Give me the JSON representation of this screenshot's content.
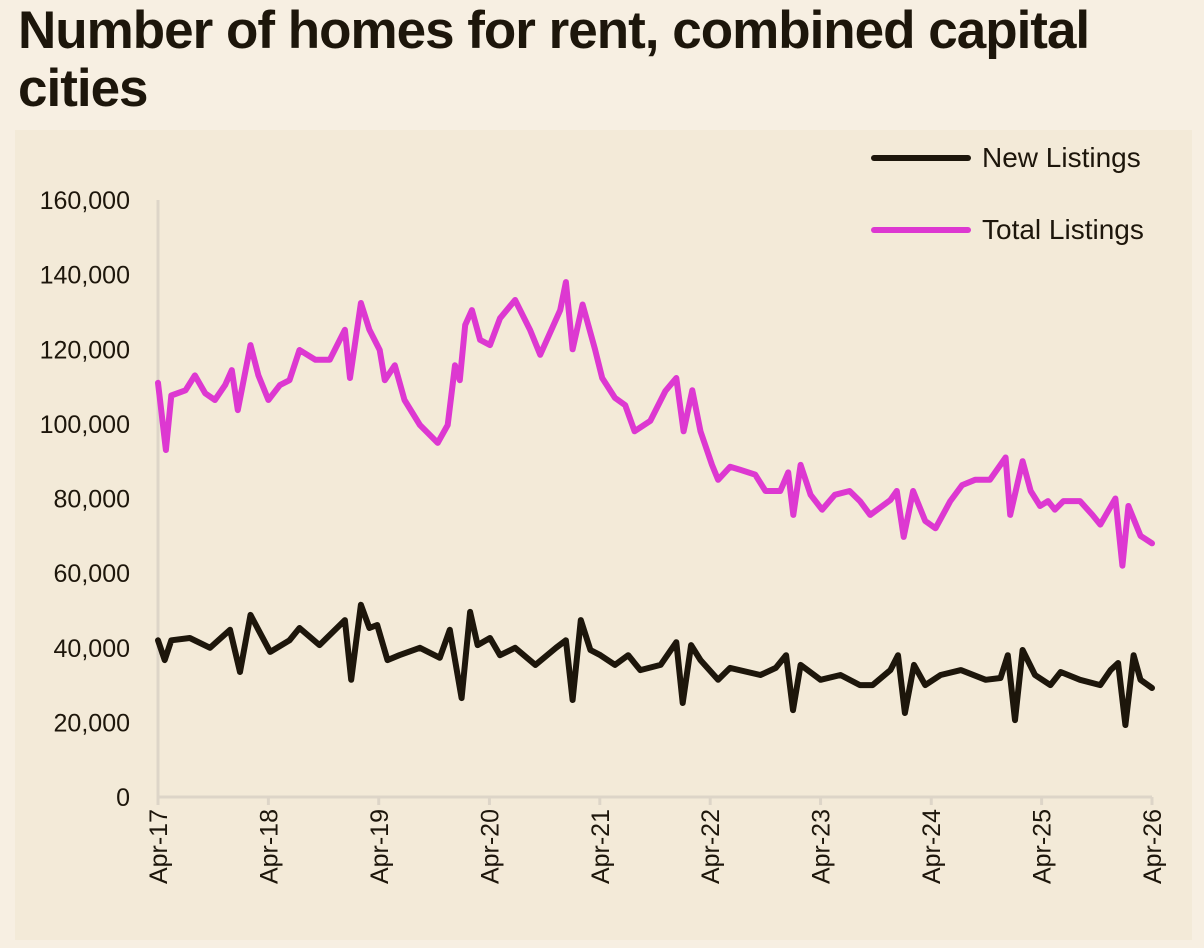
{
  "title": "Number of homes for rent, combined capital cities",
  "chart_data": {
    "type": "line",
    "title": "Number of homes for rent, combined capital cities",
    "xlabel": "",
    "ylabel": "",
    "xlim": [
      "2017-04-01",
      "2026-04-01"
    ],
    "ylim": [
      0,
      160000
    ],
    "x_ticks": [
      {
        "date": "2017-04-01",
        "label": "Apr-17"
      },
      {
        "date": "2018-04-01",
        "label": "Apr-18"
      },
      {
        "date": "2019-04-01",
        "label": "Apr-19"
      },
      {
        "date": "2020-04-01",
        "label": "Apr-20"
      },
      {
        "date": "2021-04-01",
        "label": "Apr-21"
      },
      {
        "date": "2022-04-01",
        "label": "Apr-22"
      },
      {
        "date": "2023-04-01",
        "label": "Apr-23"
      },
      {
        "date": "2024-04-01",
        "label": "Apr-24"
      },
      {
        "date": "2025-04-01",
        "label": "Apr-25"
      },
      {
        "date": "2026-04-01",
        "label": "Apr-26"
      }
    ],
    "y_ticks": [
      {
        "value": 0,
        "label": "0"
      },
      {
        "value": 20000,
        "label": "20,000"
      },
      {
        "value": 40000,
        "label": "40,000"
      },
      {
        "value": 60000,
        "label": "60,000"
      },
      {
        "value": 80000,
        "label": "80,000"
      },
      {
        "value": 100000,
        "label": "100,000"
      },
      {
        "value": 120000,
        "label": "120,000"
      },
      {
        "value": 140000,
        "label": "140,000"
      },
      {
        "value": 160000,
        "label": "160,000"
      }
    ],
    "grid": false,
    "legend_position": "top-right",
    "series": [
      {
        "name": "New Listings",
        "color": "#1d160b",
        "points": [
          [
            "2017-04-01",
            42000
          ],
          [
            "2017-04-23",
            36700
          ],
          [
            "2017-05-15",
            42000
          ],
          [
            "2017-07-15",
            42600
          ],
          [
            "2017-09-20",
            40000
          ],
          [
            "2017-11-25",
            44800
          ],
          [
            "2017-12-28",
            33500
          ],
          [
            "2018-02-01",
            48800
          ],
          [
            "2018-02-27",
            44800
          ],
          [
            "2018-04-07",
            38900
          ],
          [
            "2018-06-10",
            42000
          ],
          [
            "2018-07-13",
            45300
          ],
          [
            "2018-09-17",
            40700
          ],
          [
            "2018-12-10",
            47400
          ],
          [
            "2018-12-31",
            31400
          ],
          [
            "2019-02-01",
            51500
          ],
          [
            "2019-03-01",
            45300
          ],
          [
            "2019-03-27",
            46100
          ],
          [
            "2019-04-30",
            36700
          ],
          [
            "2019-06-08",
            38000
          ],
          [
            "2019-08-15",
            40000
          ],
          [
            "2019-10-20",
            37300
          ],
          [
            "2019-11-22",
            44800
          ],
          [
            "2019-12-31",
            26500
          ],
          [
            "2020-01-28",
            49600
          ],
          [
            "2020-02-22",
            40700
          ],
          [
            "2020-04-03",
            42600
          ],
          [
            "2020-05-06",
            38000
          ],
          [
            "2020-06-25",
            40000
          ],
          [
            "2020-08-31",
            35400
          ],
          [
            "2020-11-07",
            40000
          ],
          [
            "2020-12-10",
            42000
          ],
          [
            "2021-01-01",
            26000
          ],
          [
            "2021-01-28",
            47400
          ],
          [
            "2021-03-01",
            39400
          ],
          [
            "2021-04-03",
            38000
          ],
          [
            "2021-05-21",
            35400
          ],
          [
            "2021-07-04",
            38000
          ],
          [
            "2021-08-13",
            34000
          ],
          [
            "2021-10-19",
            35400
          ],
          [
            "2021-12-10",
            41500
          ],
          [
            "2021-12-31",
            25200
          ],
          [
            "2022-01-28",
            40700
          ],
          [
            "2022-02-28",
            36700
          ],
          [
            "2022-04-27",
            31400
          ],
          [
            "2022-06-06",
            34600
          ],
          [
            "2022-09-14",
            32700
          ],
          [
            "2022-11-04",
            34600
          ],
          [
            "2022-12-08",
            38000
          ],
          [
            "2022-12-31",
            23300
          ],
          [
            "2023-01-25",
            35400
          ],
          [
            "2023-04-01",
            31400
          ],
          [
            "2023-06-06",
            32700
          ],
          [
            "2023-08-09",
            30000
          ],
          [
            "2023-09-20",
            30000
          ],
          [
            "2023-11-18",
            34000
          ],
          [
            "2023-12-13",
            38000
          ],
          [
            "2024-01-05",
            22500
          ],
          [
            "2024-02-04",
            35400
          ],
          [
            "2024-03-12",
            30000
          ],
          [
            "2024-05-02",
            32700
          ],
          [
            "2024-07-08",
            34000
          ],
          [
            "2024-09-28",
            31400
          ],
          [
            "2024-11-16",
            31900
          ],
          [
            "2024-12-10",
            38000
          ],
          [
            "2025-01-03",
            20600
          ],
          [
            "2025-01-28",
            39400
          ],
          [
            "2025-03-10",
            32700
          ],
          [
            "2025-04-30",
            30000
          ],
          [
            "2025-06-03",
            33500
          ],
          [
            "2025-08-06",
            31400
          ],
          [
            "2025-10-12",
            30000
          ],
          [
            "2025-11-15",
            34000
          ],
          [
            "2025-12-10",
            35900
          ],
          [
            "2026-01-03",
            19300
          ],
          [
            "2026-01-30",
            38000
          ],
          [
            "2026-02-22",
            31400
          ],
          [
            "2026-04-01",
            29200
          ]
        ]
      },
      {
        "name": "Total Listings",
        "color": "#dd38d1",
        "points": [
          [
            "2017-04-01",
            111000
          ],
          [
            "2017-04-27",
            93000
          ],
          [
            "2017-05-15",
            107600
          ],
          [
            "2017-07-01",
            109000
          ],
          [
            "2017-08-01",
            113000
          ],
          [
            "2017-09-04",
            108200
          ],
          [
            "2017-10-06",
            106400
          ],
          [
            "2017-11-09",
            110400
          ],
          [
            "2017-12-01",
            114400
          ],
          [
            "2017-12-21",
            103700
          ],
          [
            "2018-02-01",
            121100
          ],
          [
            "2018-02-27",
            113000
          ],
          [
            "2018-04-01",
            106400
          ],
          [
            "2018-05-09",
            110400
          ],
          [
            "2018-06-10",
            111700
          ],
          [
            "2018-07-13",
            119800
          ],
          [
            "2018-09-03",
            117200
          ],
          [
            "2018-10-21",
            117200
          ],
          [
            "2018-12-10",
            125200
          ],
          [
            "2018-12-27",
            112300
          ],
          [
            "2019-02-01",
            132400
          ],
          [
            "2019-03-01",
            125200
          ],
          [
            "2019-04-04",
            119800
          ],
          [
            "2019-04-21",
            111700
          ],
          [
            "2019-05-24",
            115700
          ],
          [
            "2019-06-25",
            106400
          ],
          [
            "2019-08-15",
            99700
          ],
          [
            "2019-10-13",
            94900
          ],
          [
            "2019-11-15",
            99700
          ],
          [
            "2019-12-09",
            115700
          ],
          [
            "2019-12-25",
            111700
          ],
          [
            "2020-01-12",
            126500
          ],
          [
            "2020-02-03",
            130500
          ],
          [
            "2020-03-01",
            122500
          ],
          [
            "2020-04-03",
            121100
          ],
          [
            "2020-05-06",
            128300
          ],
          [
            "2020-06-25",
            133200
          ],
          [
            "2020-08-13",
            125200
          ],
          [
            "2020-09-16",
            118500
          ],
          [
            "2020-11-21",
            130500
          ],
          [
            "2020-12-10",
            138000
          ],
          [
            "2021-01-01",
            120000
          ],
          [
            "2021-02-03",
            132000
          ],
          [
            "2021-03-16",
            120000
          ],
          [
            "2021-04-09",
            112300
          ],
          [
            "2021-05-21",
            107000
          ],
          [
            "2021-06-24",
            105000
          ],
          [
            "2021-07-25",
            98000
          ],
          [
            "2021-09-15",
            100800
          ],
          [
            "2021-11-04",
            108800
          ],
          [
            "2021-12-10",
            112300
          ],
          [
            "2022-01-03",
            98000
          ],
          [
            "2022-02-01",
            109000
          ],
          [
            "2022-02-28",
            98000
          ],
          [
            "2022-04-07",
            89000
          ],
          [
            "2022-04-27",
            85000
          ],
          [
            "2022-06-06",
            88500
          ],
          [
            "2022-07-09",
            87700
          ],
          [
            "2022-08-28",
            86400
          ],
          [
            "2022-10-01",
            82000
          ],
          [
            "2022-11-19",
            82000
          ],
          [
            "2022-12-15",
            87000
          ],
          [
            "2023-01-01",
            75600
          ],
          [
            "2023-01-25",
            89000
          ],
          [
            "2023-02-27",
            81000
          ],
          [
            "2023-04-06",
            77000
          ],
          [
            "2023-05-18",
            81000
          ],
          [
            "2023-07-06",
            82000
          ],
          [
            "2023-08-09",
            79300
          ],
          [
            "2023-09-12",
            75600
          ],
          [
            "2023-11-18",
            79600
          ],
          [
            "2023-12-09",
            82000
          ],
          [
            "2024-01-01",
            69700
          ],
          [
            "2024-02-01",
            82000
          ],
          [
            "2024-03-12",
            74000
          ],
          [
            "2024-04-15",
            72000
          ],
          [
            "2024-06-03",
            79300
          ],
          [
            "2024-07-12",
            83600
          ],
          [
            "2024-08-24",
            85000
          ],
          [
            "2024-10-12",
            85000
          ],
          [
            "2024-12-03",
            91000
          ],
          [
            "2024-12-18",
            75600
          ],
          [
            "2025-01-28",
            90000
          ],
          [
            "2025-02-24",
            82000
          ],
          [
            "2025-03-27",
            78000
          ],
          [
            "2025-04-22",
            79300
          ],
          [
            "2025-05-15",
            77000
          ],
          [
            "2025-06-12",
            79300
          ],
          [
            "2025-08-06",
            79300
          ],
          [
            "2025-09-16",
            75600
          ],
          [
            "2025-10-12",
            73000
          ],
          [
            "2025-12-01",
            80000
          ],
          [
            "2025-12-24",
            62000
          ],
          [
            "2026-01-13",
            78000
          ],
          [
            "2026-02-22",
            70000
          ],
          [
            "2026-04-01",
            68000
          ]
        ]
      }
    ]
  }
}
